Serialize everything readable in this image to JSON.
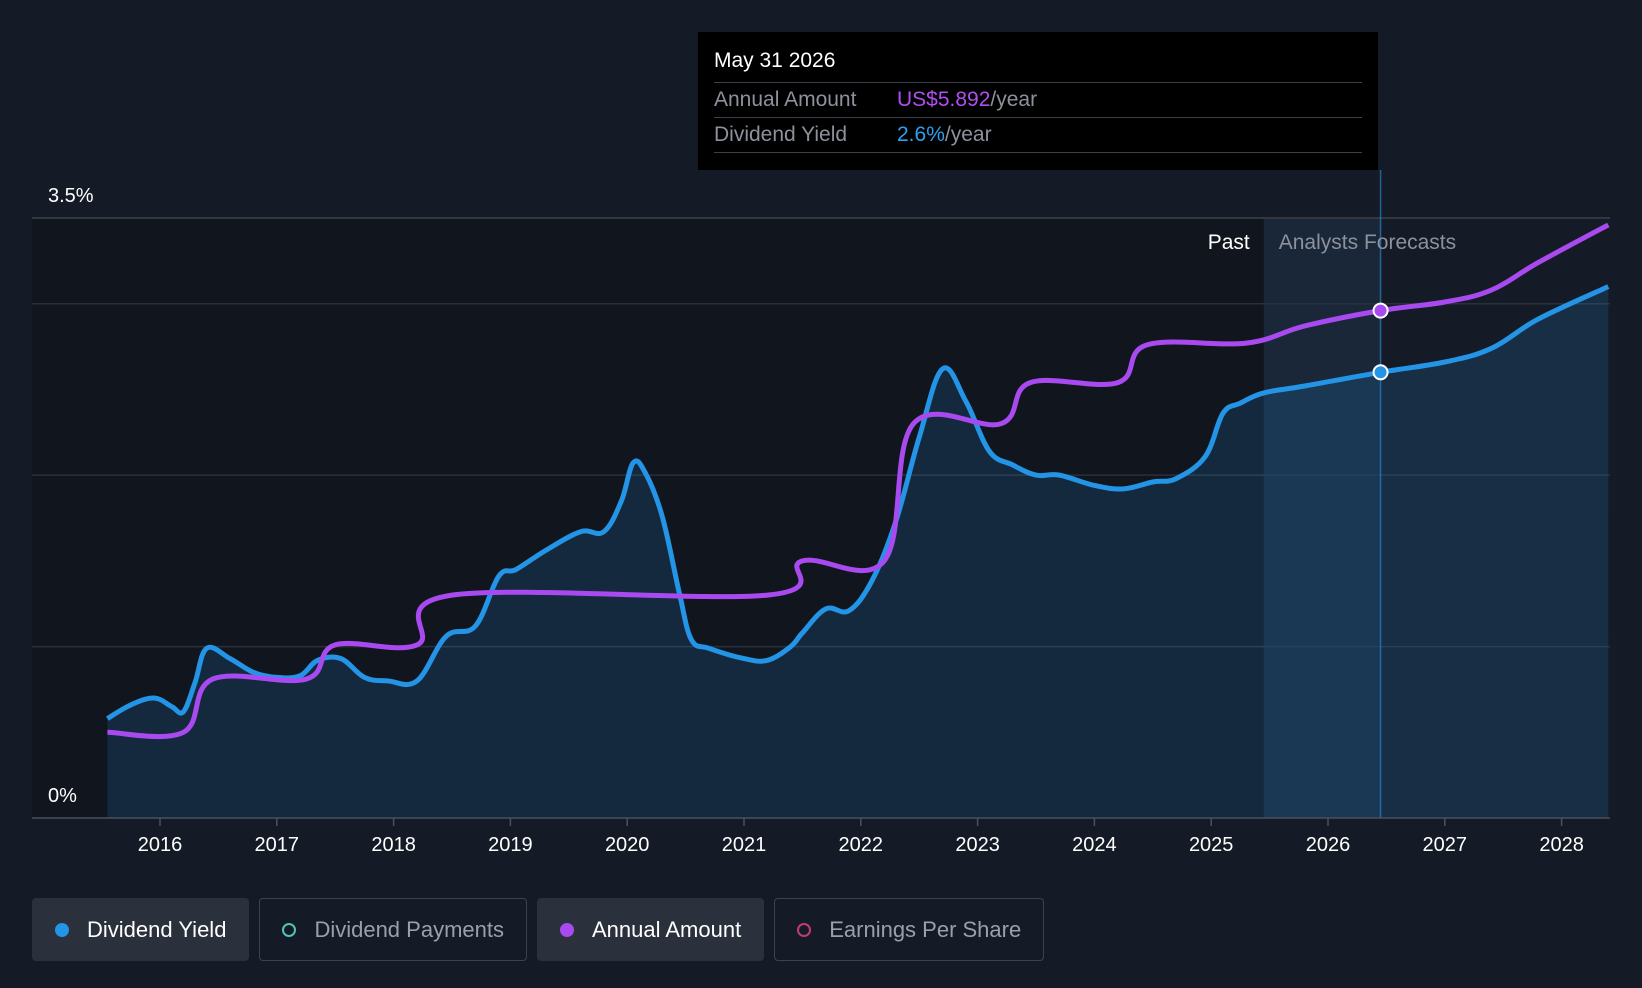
{
  "tooltip": {
    "date": "May 31 2026",
    "rows": [
      {
        "label": "Annual Amount",
        "value": "US$5.892",
        "unit": "/year"
      },
      {
        "label": "Dividend Yield",
        "value": "2.6%",
        "unit": "/year"
      }
    ]
  },
  "regions": {
    "past": "Past",
    "forecast": "Analysts Forecasts"
  },
  "legend": [
    {
      "label": "Dividend Yield",
      "color": "#2394e6",
      "filled": true,
      "active": true
    },
    {
      "label": "Dividend Payments",
      "color": "#4fc3b8",
      "filled": false,
      "active": false
    },
    {
      "label": "Annual Amount",
      "color": "#a94af0",
      "filled": true,
      "active": true
    },
    {
      "label": "Earnings Per Share",
      "color": "#c13a78",
      "filled": false,
      "active": false
    }
  ],
  "colors": {
    "yield": "#2394e6",
    "amount": "#a94af0",
    "background": "#151b26",
    "past_shade": "#11151d",
    "forecast_shade": "#1e3148"
  },
  "chart_data": {
    "type": "line",
    "ylim": [
      0,
      3.5
    ],
    "y_tick_labels": [
      "0%",
      "3.5%"
    ],
    "x_tick_labels": [
      "2016",
      "2017",
      "2018",
      "2019",
      "2020",
      "2021",
      "2022",
      "2023",
      "2024",
      "2025",
      "2026",
      "2027",
      "2028"
    ],
    "xlim": [
      2015.5,
      2028.4
    ],
    "forecast_start": 2025.45,
    "tooltip_x": 2026.45,
    "grid": true,
    "series": [
      {
        "name": "Dividend Yield",
        "unit": "%",
        "x": [
          2015.55,
          2015.75,
          2015.95,
          2016.1,
          2016.2,
          2016.3,
          2016.4,
          2016.6,
          2016.8,
          2017.0,
          2017.2,
          2017.35,
          2017.55,
          2017.75,
          2017.95,
          2018.2,
          2018.45,
          2018.7,
          2018.9,
          2019.05,
          2019.3,
          2019.6,
          2019.8,
          2019.95,
          2020.05,
          2020.15,
          2020.3,
          2020.45,
          2020.55,
          2020.7,
          2021.0,
          2021.2,
          2021.4,
          2021.5,
          2021.7,
          2021.9,
          2022.1,
          2022.3,
          2022.5,
          2022.7,
          2022.9,
          2023.1,
          2023.3,
          2023.5,
          2023.7,
          2024.0,
          2024.25,
          2024.5,
          2024.7,
          2024.95,
          2025.1,
          2025.25,
          2025.45,
          2025.8,
          2026.45,
          2027.0,
          2027.4,
          2027.8,
          2028.4
        ],
        "y": [
          0.58,
          0.66,
          0.7,
          0.65,
          0.62,
          0.79,
          0.99,
          0.93,
          0.85,
          0.82,
          0.83,
          0.92,
          0.93,
          0.82,
          0.8,
          0.8,
          1.06,
          1.12,
          1.41,
          1.45,
          1.56,
          1.67,
          1.67,
          1.85,
          2.07,
          2.02,
          1.76,
          1.3,
          1.04,
          0.99,
          0.93,
          0.92,
          1.0,
          1.08,
          1.22,
          1.21,
          1.39,
          1.73,
          2.22,
          2.62,
          2.43,
          2.14,
          2.06,
          2.0,
          2.0,
          1.94,
          1.92,
          1.96,
          1.98,
          2.11,
          2.36,
          2.42,
          2.48,
          2.52,
          2.6,
          2.66,
          2.74,
          2.91,
          3.1
        ]
      },
      {
        "name": "Annual Amount",
        "x": [
          2015.55,
          2016.2,
          2016.45,
          2017.25,
          2017.5,
          2018.2,
          2018.5,
          2021.2,
          2021.5,
          2022.2,
          2022.45,
          2023.2,
          2023.45,
          2024.2,
          2024.45,
          2025.3,
          2025.8,
          2026.45,
          2027.0,
          2027.4,
          2027.8,
          2028.4
        ],
        "y": [
          0.5,
          0.5,
          0.81,
          0.81,
          1.01,
          1.01,
          1.3,
          1.3,
          1.5,
          1.5,
          2.3,
          2.3,
          2.54,
          2.54,
          2.76,
          2.77,
          2.87,
          2.96,
          3.01,
          3.08,
          3.24,
          3.46
        ]
      }
    ]
  }
}
